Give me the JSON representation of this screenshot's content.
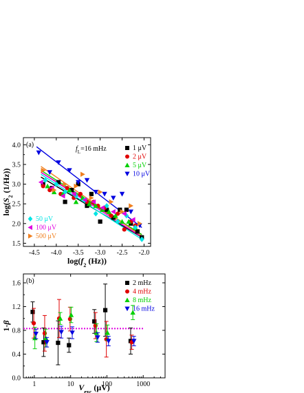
{
  "chart_data": [
    {
      "type": "scatter",
      "panel_label": "(a)",
      "annotation": "f_L=16 mHz",
      "xlabel": "log(f_2 (Hz))",
      "ylabel": "log(S_2 (1/Hz))",
      "xlim": [
        -4.75,
        -1.85
      ],
      "ylim": [
        1.42,
        4.18
      ],
      "xticks": [
        "-4.5",
        "-4.0",
        "-3.5",
        "-3.0",
        "-2.5",
        "-2.0"
      ],
      "yticks": [
        "1.5",
        "2.0",
        "2.5",
        "3.0",
        "3.5",
        "4.0"
      ],
      "legend_top_right": [
        "1 μV",
        "2 μV",
        "5 μV",
        "10 μV"
      ],
      "legend_bottom_left": [
        "50 μV",
        "100 μV",
        "500 μV"
      ],
      "series": [
        {
          "name": "1 μV",
          "color": "#000000",
          "marker": "square",
          "x": [
            -4.3,
            -4.1,
            -3.95,
            -3.8,
            -3.65,
            -3.5,
            -3.3,
            -3.2,
            -3.0,
            -2.85,
            -2.7,
            -2.55,
            -2.4,
            -2.3,
            -2.15,
            -2.05
          ],
          "y": [
            3.0,
            2.9,
            3.05,
            2.55,
            2.85,
            3.0,
            2.45,
            2.75,
            2.05,
            2.35,
            2.15,
            2.35,
            2.35,
            2.0,
            1.8,
            1.65
          ],
          "fit": {
            "x": [
              -4.35,
              -2.05
            ],
            "y": [
              3.18,
              1.65
            ]
          }
        },
        {
          "name": "2 μV",
          "color": "#e00000",
          "marker": "circle",
          "x": [
            -4.3,
            -4.15,
            -3.9,
            -3.75,
            -3.6,
            -3.45,
            -3.3,
            -3.15,
            -3.05,
            -2.9,
            -2.75,
            -2.6,
            -2.45,
            -2.3,
            -2.2
          ],
          "y": [
            2.95,
            2.85,
            2.75,
            2.9,
            2.65,
            2.75,
            2.55,
            2.55,
            2.45,
            2.4,
            2.2,
            2.25,
            1.85,
            2.05,
            1.95
          ],
          "fit": {
            "x": [
              -4.35,
              -2.05
            ],
            "y": [
              3.3,
              1.72
            ]
          }
        },
        {
          "name": "5 μV",
          "color": "#00d000",
          "marker": "triangle-up",
          "x": [
            -4.2,
            -4.05,
            -3.85,
            -3.7,
            -3.55,
            -3.4,
            -3.25,
            -3.1,
            -2.95,
            -2.8,
            -2.65,
            -2.5,
            -2.35,
            -2.2
          ],
          "y": [
            2.95,
            2.8,
            2.75,
            2.85,
            2.55,
            2.65,
            2.5,
            2.45,
            2.35,
            2.3,
            2.2,
            2.05,
            2.05,
            1.9
          ],
          "fit": {
            "x": [
              -4.35,
              -2.05
            ],
            "y": [
              3.35,
              1.72
            ]
          }
        },
        {
          "name": "10 μV",
          "color": "#0000e0",
          "marker": "triangle-down",
          "x": [
            -4.4,
            -4.15,
            -3.95,
            -3.7,
            -3.5,
            -3.3,
            -3.1,
            -2.9,
            -2.7,
            -2.5,
            -2.3,
            -2.1
          ],
          "y": [
            3.8,
            3.3,
            3.55,
            3.35,
            3.05,
            3.1,
            2.8,
            2.75,
            2.65,
            2.75,
            2.3,
            1.95
          ],
          "fit": {
            "x": [
              -4.45,
              -2.05
            ],
            "y": [
              3.95,
              1.9
            ]
          }
        },
        {
          "name": "50 μV",
          "color": "#00e5e5",
          "marker": "diamond",
          "x": [
            -4.25,
            -4.0,
            -3.8,
            -3.55,
            -3.35,
            -3.1,
            -2.85,
            -2.6,
            -2.4,
            -2.2,
            -2.05
          ],
          "y": [
            3.1,
            3.0,
            2.8,
            2.7,
            2.6,
            2.25,
            2.45,
            2.05,
            2.2,
            1.9,
            1.6
          ],
          "fit": {
            "x": [
              -4.35,
              -2.05
            ],
            "y": [
              3.25,
              1.6
            ]
          }
        },
        {
          "name": "100 μV",
          "color": "#e000e0",
          "marker": "triangle-left",
          "x": [
            -4.35,
            -4.1,
            -3.85,
            -3.6,
            -3.35,
            -3.15,
            -2.95,
            -2.7,
            -2.45,
            -2.25
          ],
          "y": [
            3.05,
            2.9,
            2.7,
            2.75,
            2.6,
            2.55,
            2.4,
            2.3,
            2.25,
            2.1
          ],
          "fit": {
            "x": [
              -4.35,
              -2.05
            ],
            "y": [
              3.3,
              1.66
            ]
          }
        },
        {
          "name": "500 μV",
          "color": "#f08020",
          "marker": "triangle-right",
          "x": [
            -4.3,
            -4.05,
            -3.8,
            -3.55,
            -3.4,
            -3.2,
            -3.0,
            -2.75,
            -2.5,
            -2.3,
            -2.1
          ],
          "y": [
            3.35,
            2.85,
            3.0,
            2.95,
            3.25,
            2.65,
            2.8,
            2.55,
            2.3,
            2.45,
            2.0
          ],
          "fit": {
            "x": [
              -4.35,
              -2.05
            ],
            "y": [
              3.45,
              1.68
            ]
          }
        }
      ]
    },
    {
      "type": "scatter",
      "panel_label": "(b)",
      "xlabel": "V_exc (μV)",
      "ylabel": "1-β",
      "xscale": "log",
      "xlim": [
        0.5,
        4000
      ],
      "ylim": [
        0.0,
        1.75
      ],
      "xticks": [
        1,
        10,
        100,
        1000
      ],
      "yticks": [
        "0.0",
        "0.4",
        "0.8",
        "1.2",
        "1.6"
      ],
      "reference_line": {
        "y": 0.83,
        "color": "#e000e0",
        "style": "dotted"
      },
      "series": [
        {
          "name": "2 mHz",
          "color": "#000000",
          "marker": "square",
          "x": [
            1,
            2,
            5,
            10,
            50,
            100,
            500
          ],
          "y": [
            1.11,
            0.6,
            0.59,
            0.55,
            0.95,
            1.14,
            0.62
          ],
          "err": [
            0.17,
            0.24,
            0.37,
            0.12,
            0.2,
            0.44,
            0.22
          ]
        },
        {
          "name": "4 mHz",
          "color": "#e00000",
          "marker": "circle",
          "x": [
            1,
            2,
            5,
            10,
            50,
            100,
            500
          ],
          "y": [
            0.92,
            0.75,
            1.0,
            0.99,
            0.88,
            0.65,
            0.6
          ],
          "err": [
            0.25,
            0.3,
            0.32,
            0.2,
            0.22,
            0.3,
            0.12
          ]
        },
        {
          "name": "8 mHz",
          "color": "#00d000",
          "marker": "triangle-up",
          "x": [
            1,
            2,
            5,
            10,
            50,
            100,
            500
          ],
          "y": [
            0.67,
            0.67,
            1.0,
            1.06,
            0.76,
            0.76,
            1.1
          ],
          "err": [
            0.18,
            0.15,
            0.1,
            0.13,
            0.15,
            0.13,
            0.12
          ]
        },
        {
          "name": "16 mHz",
          "color": "#0000e0",
          "marker": "triangle-down",
          "x": [
            1,
            2,
            5,
            10,
            50,
            100,
            500
          ],
          "y": [
            0.74,
            0.6,
            0.77,
            0.76,
            0.68,
            0.62,
            0.62
          ],
          "err": [
            0.08,
            0.08,
            0.1,
            0.1,
            0.08,
            0.08,
            0.08
          ]
        }
      ]
    }
  ]
}
